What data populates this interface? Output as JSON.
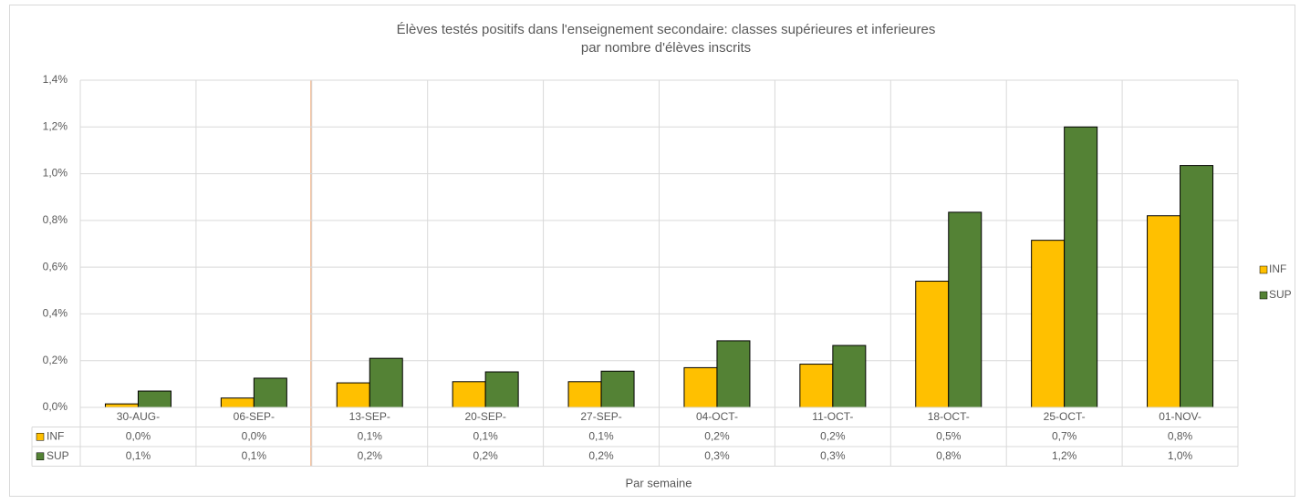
{
  "chart_data": {
    "type": "bar",
    "title": "Élèves testés positifs dans l'enseignement secondaire: classes supérieures et inferieures",
    "subtitle": "par nombre d'élèves inscrits",
    "x_label": "Par semaine",
    "categories": [
      "30-AUG-",
      "06-SEP-",
      "13-SEP-",
      "20-SEP-",
      "27-SEP-",
      "04-OCT-",
      "11-OCT-",
      "18-OCT-",
      "25-OCT-",
      "01-NOV-"
    ],
    "series": [
      {
        "name": "INF",
        "color": "#ffc000",
        "values": [
          0.015,
          0.04,
          0.105,
          0.11,
          0.11,
          0.17,
          0.185,
          0.54,
          0.715,
          0.82
        ],
        "value_labels": [
          "0,0%",
          "0,0%",
          "0,1%",
          "0,1%",
          "0,1%",
          "0,2%",
          "0,2%",
          "0,5%",
          "0,7%",
          "0,8%"
        ]
      },
      {
        "name": "SUP",
        "color": "#548235",
        "values": [
          0.07,
          0.125,
          0.21,
          0.152,
          0.155,
          0.285,
          0.265,
          0.835,
          1.2,
          1.035
        ],
        "value_labels": [
          "0,1%",
          "0,1%",
          "0,2%",
          "0,2%",
          "0,2%",
          "0,3%",
          "0,3%",
          "0,8%",
          "1,2%",
          "1,0%"
        ]
      }
    ],
    "ylim": [
      0,
      1.4
    ],
    "yticks": [
      {
        "value": 0,
        "label": "0,0%"
      },
      {
        "value": 0.2,
        "label": "0,2%"
      },
      {
        "value": 0.4,
        "label": "0,4%"
      },
      {
        "value": 0.6,
        "label": "0,6%"
      },
      {
        "value": 0.8,
        "label": "0,8%"
      },
      {
        "value": 1.0,
        "label": "1,0%"
      },
      {
        "value": 1.2,
        "label": "1,2%"
      },
      {
        "value": 1.4,
        "label": "1,4%"
      }
    ],
    "grid": true,
    "legend": "right"
  }
}
